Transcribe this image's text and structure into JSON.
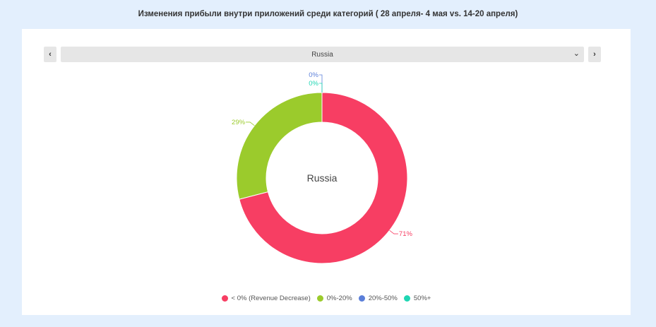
{
  "title": "Изменения прибыли внутри приложений среди категорий  ( 28 апреля- 4 мая vs.  14-20 апреля)",
  "controls": {
    "prev_icon": "chevron-left-icon",
    "next_icon": "chevron-right-icon",
    "prev_glyph": "‹",
    "next_glyph": "›",
    "selected": "Russia",
    "dropdown_icon": "chevron-down-icon",
    "dropdown_glyph": "⌄"
  },
  "chart_data": {
    "type": "pie",
    "center_label": "Russia",
    "legend_position": "bottom",
    "series": [
      {
        "name": "< 0% (Revenue Decrease)",
        "value": 71,
        "label": "71%",
        "color": "#f73e63"
      },
      {
        "name": "0%-20%",
        "value": 29,
        "label": "29%",
        "color": "#9bcb2c"
      },
      {
        "name": "20%-50%",
        "value": 0,
        "label": "0%",
        "color": "#5b7fd9"
      },
      {
        "name": "50%+",
        "value": 0,
        "label": "0%",
        "color": "#1fd6b3"
      }
    ]
  }
}
